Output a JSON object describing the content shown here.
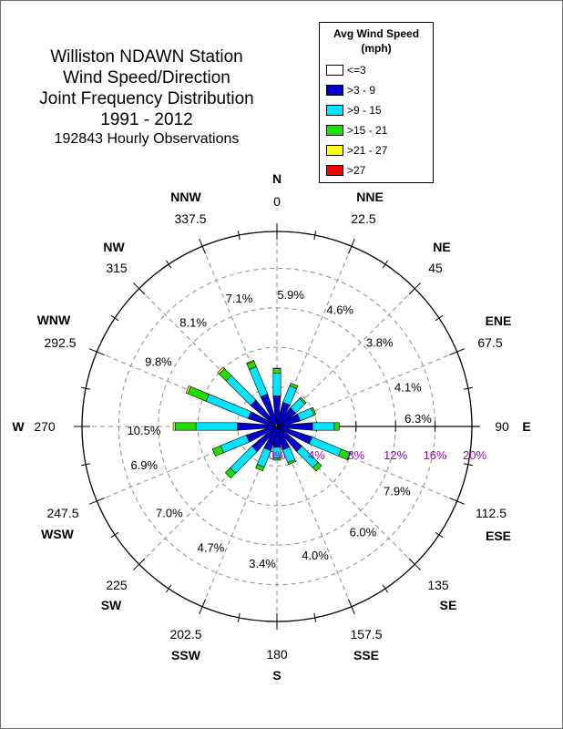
{
  "title": {
    "lines": [
      "Williston NDAWN Station",
      "Wind Speed/Direction",
      "Joint Frequency Distribution",
      "1991 - 2012"
    ],
    "observations": "192843 Hourly Observations"
  },
  "legend": {
    "title_line1": "Avg Wind Speed",
    "title_line2": "(mph)",
    "items": [
      {
        "label": "<=3",
        "color": "#ffffff"
      },
      {
        "label": ">3 - 9",
        "color": "#0000c8"
      },
      {
        "label": ">9 - 15",
        "color": "#00e5ff"
      },
      {
        "label": ">15 - 21",
        "color": "#22dd00"
      },
      {
        "label": ">21 - 27",
        "color": "#ffff00"
      },
      {
        "label": ">27",
        "color": "#ff0000"
      }
    ]
  },
  "chart_data": {
    "type": "polar-bar",
    "title": "Williston NDAWN Station Wind Speed/Direction Joint Frequency Distribution 1991 - 2012",
    "radial_axis": {
      "ticks": [
        "0%",
        "4%",
        "8%",
        "12%",
        "16%",
        "20%"
      ],
      "max": 20,
      "label_color": "#a000c8"
    },
    "directions": [
      {
        "deg": 0,
        "deg_label": "0",
        "name": "N",
        "freq": "5.9%"
      },
      {
        "deg": 22.5,
        "deg_label": "22.5",
        "name": "NNE",
        "freq": "4.6%"
      },
      {
        "deg": 45,
        "deg_label": "45",
        "name": "NE",
        "freq": "3.8%"
      },
      {
        "deg": 67.5,
        "deg_label": "67.5",
        "name": "ENE",
        "freq": "4.1%"
      },
      {
        "deg": 90,
        "deg_label": "90",
        "name": "E",
        "freq": "6.3%"
      },
      {
        "deg": 112.5,
        "deg_label": "112.5",
        "name": "ESE",
        "freq": "7.9%"
      },
      {
        "deg": 135,
        "deg_label": "135",
        "name": "SE",
        "freq": "6.0%"
      },
      {
        "deg": 157.5,
        "deg_label": "157.5",
        "name": "SSE",
        "freq": "4.0%"
      },
      {
        "deg": 180,
        "deg_label": "180",
        "name": "S",
        "freq": "3.4%"
      },
      {
        "deg": 202.5,
        "deg_label": "202.5",
        "name": "SSW",
        "freq": "4.7%"
      },
      {
        "deg": 225,
        "deg_label": "225",
        "name": "SW",
        "freq": "7.0%"
      },
      {
        "deg": 247.5,
        "deg_label": "247.5",
        "name": "WSW",
        "freq": "6.9%"
      },
      {
        "deg": 270,
        "deg_label": "270",
        "name": "W",
        "freq": "10.5%"
      },
      {
        "deg": 292.5,
        "deg_label": "292.5",
        "name": "WNW",
        "freq": "9.8%"
      },
      {
        "deg": 315,
        "deg_label": "315",
        "name": "NW",
        "freq": "8.1%"
      },
      {
        "deg": 337.5,
        "deg_label": "337.5",
        "name": "NNW",
        "freq": "7.1%"
      }
    ],
    "bins": [
      "<=3",
      ">3 - 9",
      ">9 - 15",
      ">15 - 21",
      ">21 - 27",
      ">27"
    ],
    "stack_colors": [
      "#ffffff",
      "#0000c8",
      "#00e5ff",
      "#22dd00",
      "#ffff00",
      "#ff0000"
    ],
    "series": [
      {
        "deg": 0,
        "values": [
          0.2,
          2.9,
          2.3,
          0.45,
          0.05,
          0.0
        ]
      },
      {
        "deg": 22.5,
        "values": [
          0.2,
          2.3,
          1.8,
          0.3,
          0.0,
          0.0
        ]
      },
      {
        "deg": 45,
        "values": [
          0.2,
          2.1,
          1.3,
          0.2,
          0.0,
          0.0
        ]
      },
      {
        "deg": 67.5,
        "values": [
          0.2,
          2.2,
          1.5,
          0.2,
          0.0,
          0.0
        ]
      },
      {
        "deg": 90,
        "values": [
          0.2,
          3.4,
          2.2,
          0.5,
          0.0,
          0.0
        ]
      },
      {
        "deg": 112.5,
        "values": [
          0.2,
          3.5,
          3.2,
          0.95,
          0.05,
          0.0
        ]
      },
      {
        "deg": 135,
        "values": [
          0.2,
          3.0,
          2.3,
          0.5,
          0.0,
          0.0
        ]
      },
      {
        "deg": 157.5,
        "values": [
          0.2,
          2.2,
          1.4,
          0.2,
          0.0,
          0.0
        ]
      },
      {
        "deg": 180,
        "values": [
          0.2,
          1.9,
          1.1,
          0.2,
          0.0,
          0.0
        ]
      },
      {
        "deg": 202.5,
        "values": [
          0.2,
          2.3,
          1.8,
          0.4,
          0.0,
          0.0
        ]
      },
      {
        "deg": 225,
        "values": [
          0.2,
          3.0,
          3.1,
          0.7,
          0.0,
          0.0
        ]
      },
      {
        "deg": 247.5,
        "values": [
          0.2,
          3.0,
          2.8,
          0.9,
          0.0,
          0.0
        ]
      },
      {
        "deg": 270,
        "values": [
          0.2,
          3.8,
          4.2,
          2.1,
          0.2,
          0.0
        ]
      },
      {
        "deg": 292.5,
        "values": [
          0.2,
          2.8,
          4.6,
          2.0,
          0.2,
          0.0
        ]
      },
      {
        "deg": 315,
        "values": [
          0.2,
          3.2,
          3.5,
          1.0,
          0.2,
          0.0
        ]
      },
      {
        "deg": 337.5,
        "values": [
          0.2,
          3.2,
          3.0,
          0.6,
          0.1,
          0.0
        ]
      }
    ]
  }
}
